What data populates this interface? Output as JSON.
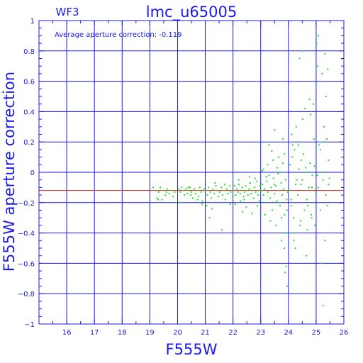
{
  "chart_data": {
    "type": "scatter",
    "title": "lmc_u65005",
    "subtitle": "WF3",
    "annotation": "Average aperture correction: -0.119",
    "xlabel": "F555W",
    "ylabel": "F555W aperture correction",
    "xlim": [
      15,
      26
    ],
    "ylim": [
      -1,
      1
    ],
    "xticks": [
      16,
      17,
      18,
      19,
      20,
      21,
      22,
      23,
      24,
      25,
      26
    ],
    "yticks": [
      -1,
      -0.8,
      -0.6,
      -0.4,
      -0.2,
      0,
      0.2,
      0.4,
      0.6,
      0.8,
      1
    ],
    "ytick_labels": [
      "−1",
      "−0.8",
      "−0.6",
      "−0.4",
      "−0.2",
      "0",
      "0.2",
      "0.4",
      "0.6",
      "0.8",
      "1"
    ],
    "grid": true,
    "reference_line": {
      "y": -0.119
    },
    "colors": {
      "axes": "#1a1ae6",
      "grid": "#1a1ae6",
      "points": "#22dd22",
      "reference_line": "#ee2222",
      "background": "#ffffff"
    },
    "points": [
      [
        19.12,
        -0.1
      ],
      [
        19.2,
        -0.12
      ],
      [
        19.26,
        -0.17
      ],
      [
        19.32,
        -0.13
      ],
      [
        19.38,
        -0.1
      ],
      [
        19.44,
        -0.18
      ],
      [
        19.5,
        -0.12
      ],
      [
        19.56,
        -0.15
      ],
      [
        19.62,
        -0.11
      ],
      [
        19.7,
        -0.14
      ],
      [
        19.78,
        -0.12
      ],
      [
        19.84,
        -0.16
      ],
      [
        19.9,
        -0.13
      ],
      [
        19.95,
        -0.2
      ],
      [
        19.3,
        -0.18
      ],
      [
        19.6,
        -0.13
      ],
      [
        20.05,
        -0.11
      ],
      [
        20.1,
        -0.13
      ],
      [
        20.15,
        -0.1
      ],
      [
        20.2,
        -0.12
      ],
      [
        20.25,
        -0.15
      ],
      [
        20.3,
        -0.11
      ],
      [
        20.35,
        -0.14
      ],
      [
        20.4,
        -0.12
      ],
      [
        20.45,
        -0.1
      ],
      [
        20.5,
        -0.13
      ],
      [
        20.55,
        -0.17
      ],
      [
        20.6,
        -0.11
      ],
      [
        20.65,
        -0.14
      ],
      [
        20.7,
        -0.12
      ],
      [
        20.75,
        -0.16
      ],
      [
        20.8,
        -0.1
      ],
      [
        20.85,
        -0.13
      ],
      [
        20.9,
        -0.19
      ],
      [
        20.95,
        -0.11
      ],
      [
        20.12,
        -0.2
      ],
      [
        20.48,
        -0.15
      ],
      [
        20.72,
        -0.18
      ],
      [
        20.38,
        -0.1
      ],
      [
        20.88,
        -0.21
      ],
      [
        21.02,
        -0.12
      ],
      [
        21.08,
        -0.15
      ],
      [
        21.12,
        -0.1
      ],
      [
        21.18,
        -0.13
      ],
      [
        21.22,
        -0.17
      ],
      [
        21.28,
        -0.11
      ],
      [
        21.32,
        -0.14
      ],
      [
        21.38,
        -0.09
      ],
      [
        21.42,
        -0.12
      ],
      [
        21.48,
        -0.16
      ],
      [
        21.52,
        -0.13
      ],
      [
        21.58,
        -0.1
      ],
      [
        21.62,
        -0.15
      ],
      [
        21.68,
        -0.12
      ],
      [
        21.72,
        -0.18
      ],
      [
        21.78,
        -0.11
      ],
      [
        21.82,
        -0.14
      ],
      [
        21.88,
        -0.09
      ],
      [
        21.92,
        -0.13
      ],
      [
        21.98,
        -0.16
      ],
      [
        21.05,
        -0.22
      ],
      [
        21.25,
        -0.24
      ],
      [
        21.45,
        -0.2
      ],
      [
        21.15,
        -0.3
      ],
      [
        21.6,
        -0.38
      ],
      [
        21.35,
        -0.07
      ],
      [
        21.7,
        -0.08
      ],
      [
        21.9,
        -0.21
      ],
      [
        22.02,
        -0.12
      ],
      [
        22.06,
        -0.09
      ],
      [
        22.1,
        -0.15
      ],
      [
        22.14,
        -0.11
      ],
      [
        22.18,
        -0.13
      ],
      [
        22.22,
        -0.08
      ],
      [
        22.26,
        -0.14
      ],
      [
        22.3,
        -0.12
      ],
      [
        22.34,
        -0.1
      ],
      [
        22.38,
        -0.16
      ],
      [
        22.42,
        -0.13
      ],
      [
        22.46,
        -0.09
      ],
      [
        22.5,
        -0.12
      ],
      [
        22.54,
        -0.15
      ],
      [
        22.58,
        -0.11
      ],
      [
        22.62,
        -0.07
      ],
      [
        22.66,
        -0.14
      ],
      [
        22.7,
        -0.12
      ],
      [
        22.74,
        -0.17
      ],
      [
        22.78,
        -0.1
      ],
      [
        22.82,
        -0.13
      ],
      [
        22.86,
        -0.06
      ],
      [
        22.9,
        -0.15
      ],
      [
        22.94,
        -0.12
      ],
      [
        22.98,
        -0.09
      ],
      [
        22.08,
        -0.21
      ],
      [
        22.28,
        -0.19
      ],
      [
        22.48,
        -0.23
      ],
      [
        22.68,
        -0.27
      ],
      [
        22.88,
        -0.22
      ],
      [
        22.2,
        -0.05
      ],
      [
        22.6,
        -0.03
      ],
      [
        22.4,
        -0.18
      ],
      [
        22.8,
        -0.04
      ],
      [
        22.95,
        -0.19
      ],
      [
        22.35,
        -0.26
      ],
      [
        23.02,
        -0.12
      ],
      [
        23.06,
        -0.08
      ],
      [
        23.1,
        -0.15
      ],
      [
        23.14,
        -0.11
      ],
      [
        23.18,
        -0.2
      ],
      [
        23.22,
        -0.06
      ],
      [
        23.26,
        -0.13
      ],
      [
        23.3,
        -0.02
      ],
      [
        23.34,
        -0.17
      ],
      [
        23.38,
        -0.1
      ],
      [
        23.42,
        -0.25
      ],
      [
        23.46,
        -0.04
      ],
      [
        23.5,
        -0.14
      ],
      [
        23.54,
        -0.09
      ],
      [
        23.58,
        -0.19
      ],
      [
        23.62,
        -0.01
      ],
      [
        23.66,
        -0.12
      ],
      [
        23.7,
        -0.22
      ],
      [
        23.74,
        -0.07
      ],
      [
        23.78,
        -0.15
      ],
      [
        23.82,
        -0.11
      ],
      [
        23.86,
        -0.28
      ],
      [
        23.9,
        -0.05
      ],
      [
        23.94,
        -0.18
      ],
      [
        23.98,
        -0.13
      ],
      [
        23.05,
        0.01
      ],
      [
        23.15,
        -0.28
      ],
      [
        23.25,
        0.05
      ],
      [
        23.35,
        -0.32
      ],
      [
        23.45,
        0.08
      ],
      [
        23.55,
        -0.35
      ],
      [
        23.65,
        0.1
      ],
      [
        23.75,
        -0.3
      ],
      [
        23.85,
        0.12
      ],
      [
        23.95,
        -0.25
      ],
      [
        23.4,
        0.14
      ],
      [
        23.6,
        0.03
      ],
      [
        23.8,
        0.06
      ],
      [
        23.2,
        -0.03
      ],
      [
        23.5,
        -0.08
      ],
      [
        23.7,
        0.0
      ],
      [
        23.9,
        -0.4
      ],
      [
        23.3,
        0.18
      ],
      [
        23.5,
        0.28
      ],
      [
        23.8,
        0.22
      ],
      [
        23.85,
        -0.5
      ],
      [
        23.92,
        -0.62
      ],
      [
        23.88,
        -0.66
      ],
      [
        23.95,
        -0.75
      ],
      [
        23.0,
        -0.7
      ],
      [
        23.1,
        0.02
      ],
      [
        23.6,
        -0.2
      ],
      [
        23.75,
        -0.45
      ],
      [
        24.02,
        -0.12
      ],
      [
        24.06,
        0.05
      ],
      [
        24.1,
        -0.22
      ],
      [
        24.14,
        0.1
      ],
      [
        24.18,
        -0.3
      ],
      [
        24.22,
        0.15
      ],
      [
        24.26,
        -0.08
      ],
      [
        24.3,
        0.2
      ],
      [
        24.34,
        -0.15
      ],
      [
        24.38,
        0.02
      ],
      [
        24.42,
        -0.35
      ],
      [
        24.46,
        0.08
      ],
      [
        24.5,
        -0.05
      ],
      [
        24.54,
        0.12
      ],
      [
        24.58,
        -0.25
      ],
      [
        24.62,
        0.03
      ],
      [
        24.66,
        -0.18
      ],
      [
        24.7,
        0.0
      ],
      [
        24.74,
        -0.1
      ],
      [
        24.78,
        0.06
      ],
      [
        24.82,
        -0.28
      ],
      [
        24.86,
        -0.02
      ],
      [
        24.9,
        -0.2
      ],
      [
        24.94,
        0.04
      ],
      [
        24.98,
        -0.13
      ],
      [
        24.05,
        -0.4
      ],
      [
        24.12,
        0.25
      ],
      [
        24.2,
        -0.45
      ],
      [
        24.28,
        0.3
      ],
      [
        24.36,
        0.18
      ],
      [
        24.44,
        -0.32
      ],
      [
        24.52,
        0.35
      ],
      [
        24.6,
        0.42
      ],
      [
        24.68,
        -0.38
      ],
      [
        24.76,
        0.48
      ],
      [
        24.84,
        -0.3
      ],
      [
        24.92,
        0.22
      ],
      [
        24.4,
        0.75
      ],
      [
        24.5,
        0.8
      ],
      [
        24.8,
        0.38
      ],
      [
        24.9,
        0.45
      ],
      [
        24.0,
        0.52
      ],
      [
        24.25,
        -0.5
      ],
      [
        24.65,
        -0.55
      ],
      [
        24.1,
        -0.18
      ],
      [
        24.3,
        -0.05
      ],
      [
        24.55,
        0.0
      ],
      [
        24.7,
        -0.22
      ],
      [
        24.85,
        -0.1
      ],
      [
        24.95,
        -0.35
      ],
      [
        24.15,
        0.18
      ],
      [
        24.45,
        -0.08
      ],
      [
        25.02,
        0.85
      ],
      [
        25.05,
        0.7
      ],
      [
        25.08,
        -0.1
      ],
      [
        25.12,
        0.6
      ],
      [
        25.15,
        0.15
      ],
      [
        25.18,
        -0.6
      ],
      [
        25.22,
        0.65
      ],
      [
        25.25,
        -0.05
      ],
      [
        25.28,
        0.3
      ],
      [
        25.32,
        0.78
      ],
      [
        25.35,
        0.5
      ],
      [
        25.38,
        0.22
      ],
      [
        25.42,
        0.68
      ],
      [
        25.45,
        -0.08
      ],
      [
        25.15,
        -0.25
      ],
      [
        25.25,
        -0.88
      ],
      [
        25.32,
        -0.45
      ],
      [
        25.4,
        -0.22
      ],
      [
        25.48,
        -0.04
      ],
      [
        25.05,
        -0.02
      ],
      [
        25.2,
        0.0
      ],
      [
        25.3,
        0.2
      ],
      [
        25.1,
        0.18
      ],
      [
        25.35,
        -0.15
      ],
      [
        25.08,
        0.9
      ],
      [
        25.45,
        0.08
      ]
    ]
  }
}
